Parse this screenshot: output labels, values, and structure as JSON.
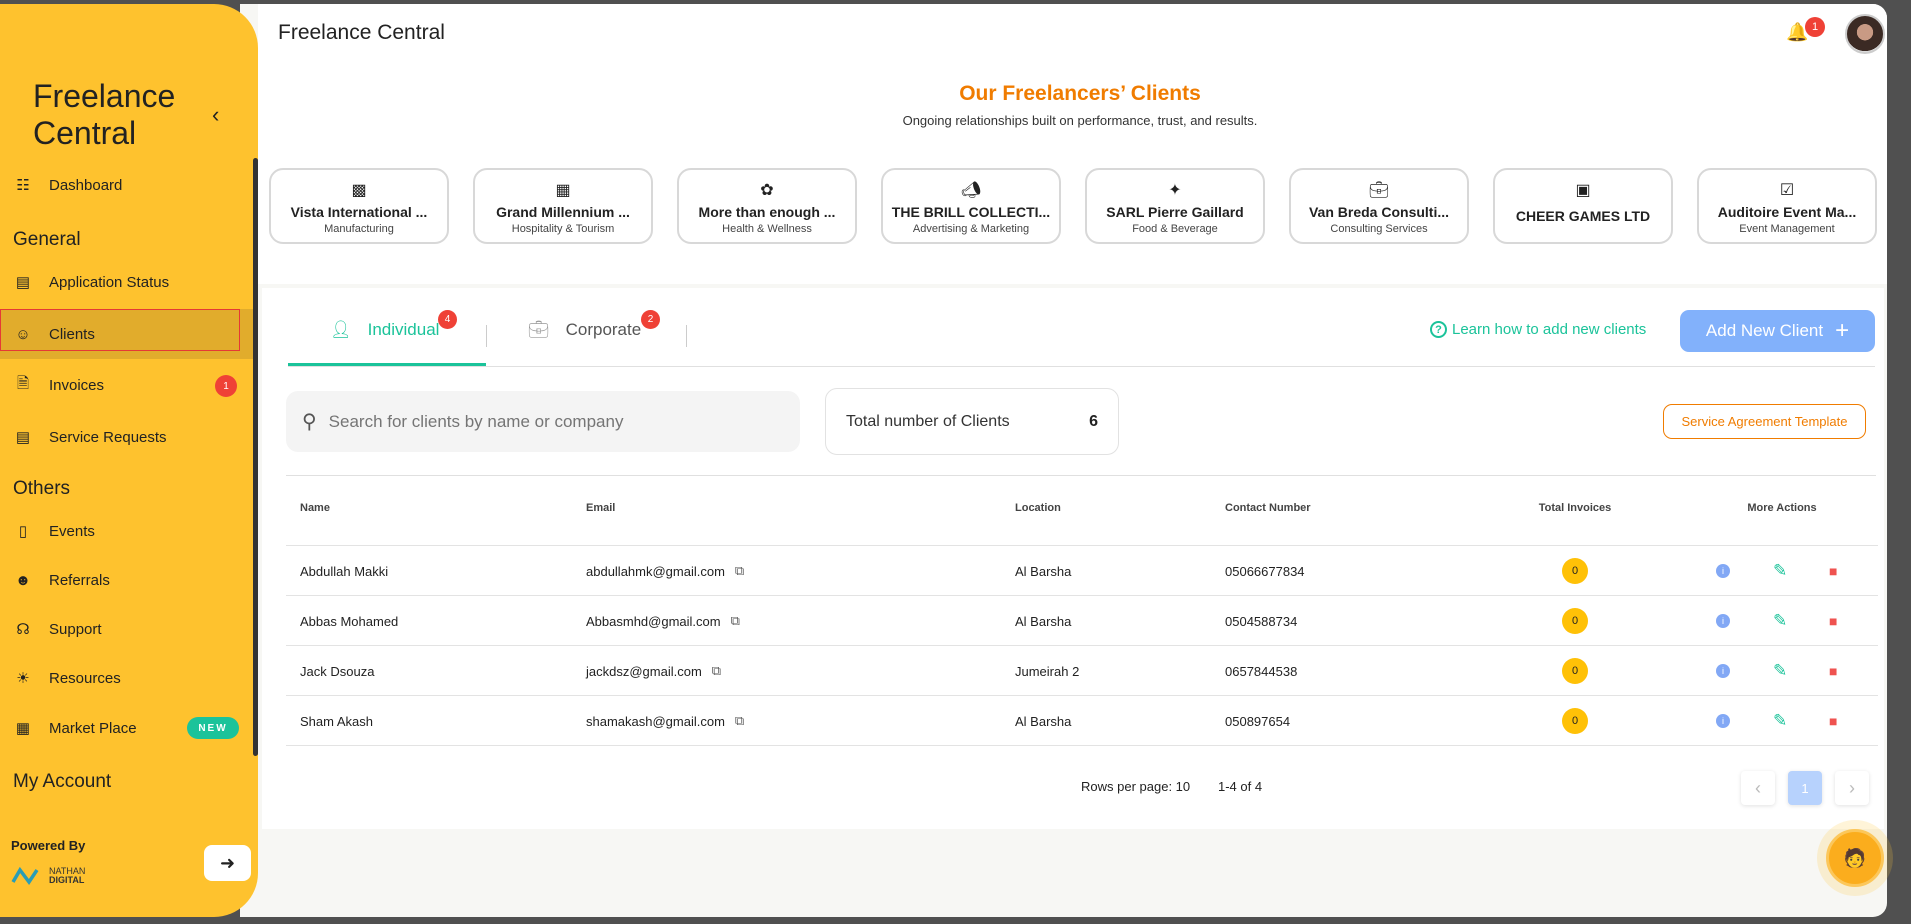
{
  "app": {
    "title": "Freelance Central",
    "notification_count": "1"
  },
  "sidebar": {
    "title_line1": "Freelance",
    "title_line2": "Central",
    "dashboard": "Dashboard",
    "sections": {
      "general": "General",
      "others": "Others",
      "account": "My Account"
    },
    "items": [
      {
        "label": "Application Status",
        "icon": "clipboard-icon"
      },
      {
        "label": "Clients",
        "icon": "users-icon",
        "active": true
      },
      {
        "label": "Invoices",
        "icon": "document-icon",
        "badge": "1"
      },
      {
        "label": "Service Requests",
        "icon": "certificate-icon"
      },
      {
        "label": "Events",
        "icon": "ticket-icon"
      },
      {
        "label": "Referrals",
        "icon": "user-plus-icon"
      },
      {
        "label": "Support",
        "icon": "headset-icon"
      },
      {
        "label": "Resources",
        "icon": "lightbulb-icon"
      },
      {
        "label": "Market Place",
        "icon": "store-icon",
        "badge": "NEW"
      }
    ],
    "powered_by": "Powered By",
    "logo_line1": "NATHAN",
    "logo_line2": "DIGITAL"
  },
  "showcase": {
    "title": "Our Freelancers’ Clients",
    "subtitle": "Ongoing relationships built on performance, trust, and results.",
    "clients": [
      {
        "name": "Vista International ...",
        "category": "Manufacturing",
        "icon": "factory-icon"
      },
      {
        "name": "Grand Millennium ...",
        "category": "Hospitality & Tourism",
        "icon": "hotel-icon"
      },
      {
        "name": "More than enough ...",
        "category": "Health & Wellness",
        "icon": "spa-icon"
      },
      {
        "name": "THE BRILL COLLECTI...",
        "category": "Advertising & Marketing",
        "icon": "megaphone-icon"
      },
      {
        "name": "SARL Pierre Gaillard",
        "category": "Food & Beverage",
        "icon": "utensils-icon"
      },
      {
        "name": "Van Breda Consulti...",
        "category": "Consulting Services",
        "icon": "briefcase-icon"
      },
      {
        "name": "CHEER GAMES LTD",
        "category": "",
        "icon": "building-icon"
      },
      {
        "name": "Auditoire Event Ma...",
        "category": "Event Management",
        "icon": "calendar-check-icon"
      }
    ]
  },
  "tabs": [
    {
      "label": "Individual",
      "badge": "4",
      "active": true
    },
    {
      "label": "Corporate",
      "badge": "2"
    }
  ],
  "learn_link": "Learn how to add new clients",
  "add_button": "Add New Client",
  "search": {
    "placeholder": "Search for clients by name or company",
    "value": ""
  },
  "total": {
    "label": "Total number of Clients",
    "value": "6"
  },
  "agreement_button": "Service Agreement Template",
  "table": {
    "headers": [
      "Name",
      "Email",
      "Location",
      "Contact Number",
      "Total Invoices",
      "More Actions"
    ],
    "rows": [
      [
        "Abdullah Makki",
        "abdullahmk@gmail.com",
        "Al Barsha",
        "05066677834",
        "0"
      ],
      [
        "Abbas Mohamed",
        "Abbasmhd@gmail.com",
        "Al Barsha",
        "0504588734",
        "0"
      ],
      [
        "Jack Dsouza",
        "jackdsz@gmail.com",
        "Jumeirah 2",
        "0657844538",
        "0"
      ],
      [
        "Sham Akash",
        "shamakash@gmail.com",
        "Al Barsha",
        "050897654",
        "0"
      ]
    ]
  },
  "pagination": {
    "rows_per_page": "Rows per page: 10",
    "range": "1-4 of 4",
    "current_page": "1"
  },
  "colors": {
    "sidebar": "#fec22e",
    "accent_teal": "#1bc39a",
    "orange": "#f07c00",
    "blue_button": "#82b1fb",
    "danger": "#ef4136"
  }
}
